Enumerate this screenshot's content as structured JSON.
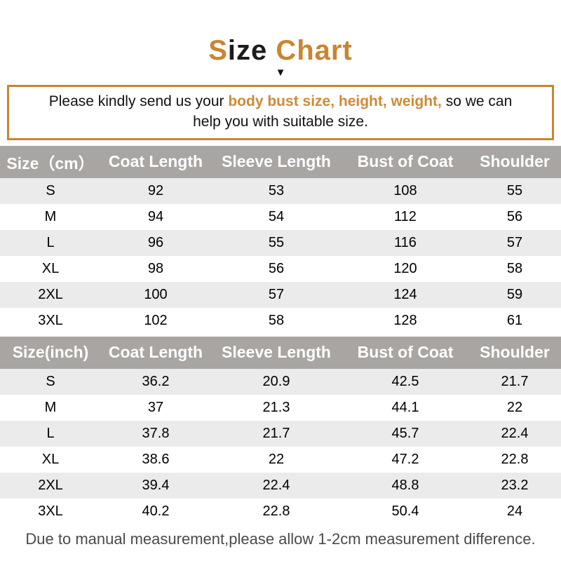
{
  "title": {
    "part1": "S",
    "part2": "ize ",
    "part3": "Chart",
    "arrow_icon": "▼"
  },
  "notice": {
    "prefix": "Please kindly send us your ",
    "highlight": "body bust size, height, weight,",
    "suffix": " so we can",
    "line2": "help you with suitable size."
  },
  "chart_data": [
    {
      "type": "table",
      "title": "Size Chart (cm)",
      "columns": [
        "Size（cm）",
        "Coat Length",
        "Sleeve Length",
        "Bust of Coat",
        "Shoulder"
      ],
      "rows": [
        [
          "S",
          "92",
          "53",
          "108",
          "55"
        ],
        [
          "M",
          "94",
          "54",
          "112",
          "56"
        ],
        [
          "L",
          "96",
          "55",
          "116",
          "57"
        ],
        [
          "XL",
          "98",
          "56",
          "120",
          "58"
        ],
        [
          "2XL",
          "100",
          "57",
          "124",
          "59"
        ],
        [
          "3XL",
          "102",
          "58",
          "128",
          "61"
        ]
      ]
    },
    {
      "type": "table",
      "title": "Size Chart (inch)",
      "columns": [
        "Size(inch)",
        "Coat Length",
        "Sleeve Length",
        "Bust of Coat",
        "Shoulder"
      ],
      "rows": [
        [
          "S",
          "36.2",
          "20.9",
          "42.5",
          "21.7"
        ],
        [
          "M",
          "37",
          "21.3",
          "44.1",
          "22"
        ],
        [
          "L",
          "37.8",
          "21.7",
          "45.7",
          "22.4"
        ],
        [
          "XL",
          "38.6",
          "22",
          "47.2",
          "22.8"
        ],
        [
          "2XL",
          "39.4",
          "22.4",
          "48.8",
          "23.2"
        ],
        [
          "3XL",
          "40.2",
          "22.8",
          "50.4",
          "24"
        ]
      ]
    }
  ],
  "footer": {
    "text": "Due to manual measurement,please allow 1-2cm measurement difference."
  },
  "colors": {
    "accent_orange": "#c8862f",
    "highlight_orange": "#cf8a35",
    "header_gray": "#a8a5a2",
    "row_alt_gray": "#ebebeb",
    "footer_gray": "#4a4a4a"
  }
}
